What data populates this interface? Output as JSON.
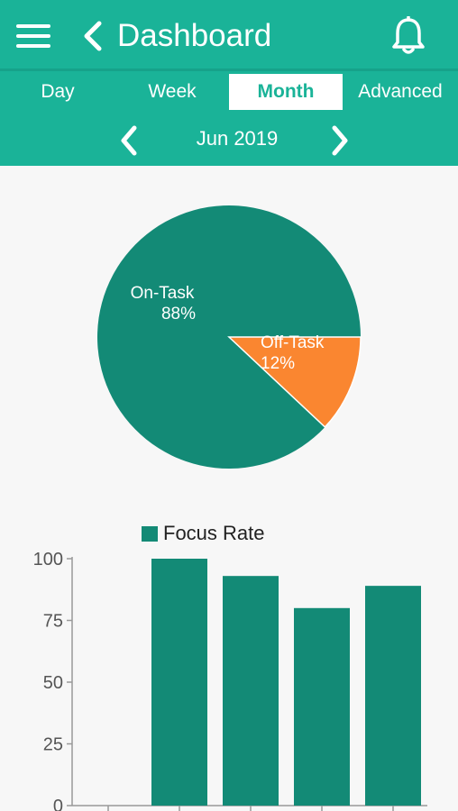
{
  "header": {
    "title": "Dashboard",
    "icons": {
      "menu": "hamburger-menu-icon",
      "back": "chevron-left-icon",
      "notifications": "bell-icon"
    },
    "tabs": [
      {
        "label": "Day",
        "active": false
      },
      {
        "label": "Week",
        "active": false
      },
      {
        "label": "Month",
        "active": true
      },
      {
        "label": "Advanced",
        "active": false
      }
    ],
    "date_label": "Jun 2019"
  },
  "colors": {
    "primary": "#1ab398",
    "series": "#138a76",
    "off_task": "#fa8630",
    "background": "#f7f7f7"
  },
  "chart_data": [
    {
      "type": "pie",
      "slices": [
        {
          "label": "On-Task",
          "value": 88,
          "value_label": "88%",
          "color": "#138a76"
        },
        {
          "label": "Off-Task",
          "value": 12,
          "value_label": "12%",
          "color": "#fa8630"
        }
      ]
    },
    {
      "type": "bar",
      "legend": "Focus Rate",
      "legend_position": "top-center",
      "ylim": [
        0,
        100
      ],
      "yticks": [
        0,
        25,
        50,
        75,
        100
      ],
      "series": [
        {
          "name": "Focus Rate",
          "values": [
            0,
            100,
            93,
            80,
            89
          ],
          "color": "#138a76"
        }
      ]
    }
  ]
}
